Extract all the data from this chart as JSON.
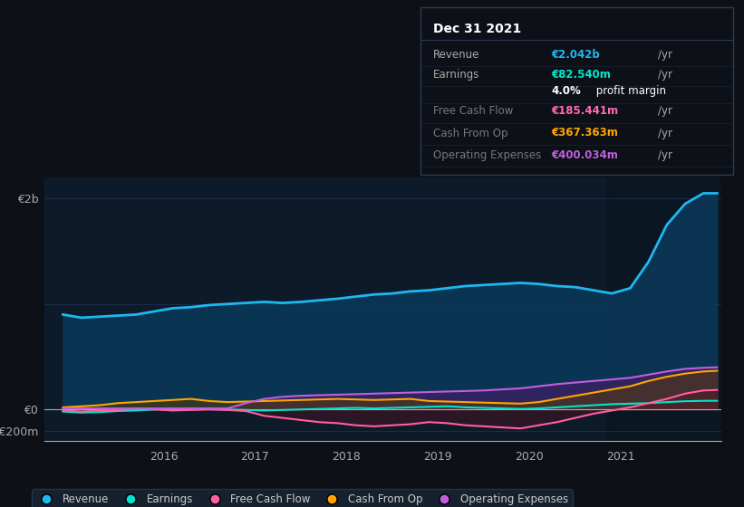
{
  "bg_color": "#0d1117",
  "plot_bg_color": "#0d1a2a",
  "highlight_bg": "#111d2e",
  "grid_color": "#1e3050",
  "zero_line_color": "#aaaaaa",
  "title_box": {
    "date": "Dec 31 2021",
    "rows": [
      {
        "label": "Revenue",
        "value": "€2.042b /yr",
        "value_color": "#00bfff",
        "label_color": "#aaaaaa"
      },
      {
        "label": "Earnings",
        "value": "€82.540m /yr",
        "value_color": "#00e5cc",
        "label_color": "#aaaaaa"
      },
      {
        "label": "",
        "value": "4.0% profit margin",
        "value_color": "#ffffff",
        "label_color": "#aaaaaa"
      },
      {
        "label": "Free Cash Flow",
        "value": "€185.441m /yr",
        "value_color": "#ff69b4",
        "label_color": "#777777"
      },
      {
        "label": "Cash From Op",
        "value": "€367.363m /yr",
        "value_color": "#ffa500",
        "label_color": "#777777"
      },
      {
        "label": "Operating Expenses",
        "value": "€400.034m /yr",
        "value_color": "#bf5fde",
        "label_color": "#777777"
      }
    ]
  },
  "yticks": [
    "€2b",
    "€0",
    "-€200m"
  ],
  "xticks": [
    "2016",
    "2017",
    "2018",
    "2019",
    "2020",
    "2021"
  ],
  "ylim": [
    -300,
    2200
  ],
  "xlim": [
    2014.7,
    2022.1
  ],
  "revenue": [
    [
      2014.9,
      900
    ],
    [
      2015.1,
      870
    ],
    [
      2015.3,
      880
    ],
    [
      2015.5,
      890
    ],
    [
      2015.7,
      900
    ],
    [
      2015.9,
      930
    ],
    [
      2016.1,
      960
    ],
    [
      2016.3,
      970
    ],
    [
      2016.5,
      990
    ],
    [
      2016.7,
      1000
    ],
    [
      2016.9,
      1010
    ],
    [
      2017.1,
      1020
    ],
    [
      2017.3,
      1010
    ],
    [
      2017.5,
      1020
    ],
    [
      2017.7,
      1035
    ],
    [
      2017.9,
      1050
    ],
    [
      2018.1,
      1070
    ],
    [
      2018.3,
      1090
    ],
    [
      2018.5,
      1100
    ],
    [
      2018.7,
      1120
    ],
    [
      2018.9,
      1130
    ],
    [
      2019.1,
      1150
    ],
    [
      2019.3,
      1170
    ],
    [
      2019.5,
      1180
    ],
    [
      2019.7,
      1190
    ],
    [
      2019.9,
      1200
    ],
    [
      2020.1,
      1190
    ],
    [
      2020.3,
      1170
    ],
    [
      2020.5,
      1160
    ],
    [
      2020.7,
      1130
    ],
    [
      2020.9,
      1100
    ],
    [
      2021.1,
      1150
    ],
    [
      2021.3,
      1400
    ],
    [
      2021.5,
      1750
    ],
    [
      2021.7,
      1950
    ],
    [
      2021.9,
      2050
    ],
    [
      2022.05,
      2050
    ]
  ],
  "earnings": [
    [
      2014.9,
      -20
    ],
    [
      2015.1,
      -30
    ],
    [
      2015.3,
      -25
    ],
    [
      2015.5,
      -15
    ],
    [
      2015.7,
      -10
    ],
    [
      2015.9,
      0
    ],
    [
      2016.1,
      5
    ],
    [
      2016.3,
      10
    ],
    [
      2016.5,
      5
    ],
    [
      2016.7,
      0
    ],
    [
      2016.9,
      -5
    ],
    [
      2017.1,
      -10
    ],
    [
      2017.3,
      -5
    ],
    [
      2017.5,
      0
    ],
    [
      2017.7,
      5
    ],
    [
      2017.9,
      10
    ],
    [
      2018.1,
      15
    ],
    [
      2018.3,
      10
    ],
    [
      2018.5,
      15
    ],
    [
      2018.7,
      20
    ],
    [
      2018.9,
      25
    ],
    [
      2019.1,
      30
    ],
    [
      2019.3,
      20
    ],
    [
      2019.5,
      15
    ],
    [
      2019.7,
      10
    ],
    [
      2019.9,
      5
    ],
    [
      2020.1,
      10
    ],
    [
      2020.3,
      20
    ],
    [
      2020.5,
      30
    ],
    [
      2020.7,
      40
    ],
    [
      2020.9,
      50
    ],
    [
      2021.1,
      55
    ],
    [
      2021.3,
      60
    ],
    [
      2021.5,
      70
    ],
    [
      2021.7,
      78
    ],
    [
      2021.9,
      82
    ],
    [
      2022.05,
      82
    ]
  ],
  "free_cash_flow": [
    [
      2014.9,
      -10
    ],
    [
      2015.1,
      -20
    ],
    [
      2015.3,
      -10
    ],
    [
      2015.5,
      -5
    ],
    [
      2015.7,
      5
    ],
    [
      2015.9,
      0
    ],
    [
      2016.1,
      -10
    ],
    [
      2016.3,
      -5
    ],
    [
      2016.5,
      0
    ],
    [
      2016.7,
      -5
    ],
    [
      2016.9,
      -15
    ],
    [
      2017.1,
      -60
    ],
    [
      2017.3,
      -80
    ],
    [
      2017.5,
      -100
    ],
    [
      2017.7,
      -120
    ],
    [
      2017.9,
      -130
    ],
    [
      2018.1,
      -150
    ],
    [
      2018.3,
      -160
    ],
    [
      2018.5,
      -150
    ],
    [
      2018.7,
      -140
    ],
    [
      2018.9,
      -120
    ],
    [
      2019.1,
      -130
    ],
    [
      2019.3,
      -150
    ],
    [
      2019.5,
      -160
    ],
    [
      2019.7,
      -170
    ],
    [
      2019.9,
      -180
    ],
    [
      2020.1,
      -150
    ],
    [
      2020.3,
      -120
    ],
    [
      2020.5,
      -80
    ],
    [
      2020.7,
      -40
    ],
    [
      2020.9,
      -10
    ],
    [
      2021.1,
      20
    ],
    [
      2021.3,
      60
    ],
    [
      2021.5,
      100
    ],
    [
      2021.7,
      150
    ],
    [
      2021.9,
      180
    ],
    [
      2022.05,
      185
    ]
  ],
  "cash_from_op": [
    [
      2014.9,
      20
    ],
    [
      2015.1,
      30
    ],
    [
      2015.3,
      40
    ],
    [
      2015.5,
      60
    ],
    [
      2015.7,
      70
    ],
    [
      2015.9,
      80
    ],
    [
      2016.1,
      90
    ],
    [
      2016.3,
      100
    ],
    [
      2016.5,
      80
    ],
    [
      2016.7,
      70
    ],
    [
      2016.9,
      75
    ],
    [
      2017.1,
      80
    ],
    [
      2017.3,
      85
    ],
    [
      2017.5,
      90
    ],
    [
      2017.7,
      95
    ],
    [
      2017.9,
      100
    ],
    [
      2018.1,
      95
    ],
    [
      2018.3,
      90
    ],
    [
      2018.5,
      95
    ],
    [
      2018.7,
      100
    ],
    [
      2018.9,
      80
    ],
    [
      2019.1,
      75
    ],
    [
      2019.3,
      70
    ],
    [
      2019.5,
      65
    ],
    [
      2019.7,
      60
    ],
    [
      2019.9,
      55
    ],
    [
      2020.1,
      70
    ],
    [
      2020.3,
      100
    ],
    [
      2020.5,
      130
    ],
    [
      2020.7,
      160
    ],
    [
      2020.9,
      190
    ],
    [
      2021.1,
      220
    ],
    [
      2021.3,
      270
    ],
    [
      2021.5,
      310
    ],
    [
      2021.7,
      340
    ],
    [
      2021.9,
      360
    ],
    [
      2022.05,
      367
    ]
  ],
  "op_expenses": [
    [
      2014.9,
      10
    ],
    [
      2015.1,
      10
    ],
    [
      2015.3,
      10
    ],
    [
      2015.5,
      10
    ],
    [
      2015.7,
      10
    ],
    [
      2015.9,
      10
    ],
    [
      2016.1,
      10
    ],
    [
      2016.3,
      10
    ],
    [
      2016.5,
      10
    ],
    [
      2016.7,
      10
    ],
    [
      2016.9,
      60
    ],
    [
      2017.1,
      100
    ],
    [
      2017.3,
      120
    ],
    [
      2017.5,
      130
    ],
    [
      2017.7,
      135
    ],
    [
      2017.9,
      140
    ],
    [
      2018.1,
      145
    ],
    [
      2018.3,
      150
    ],
    [
      2018.5,
      155
    ],
    [
      2018.7,
      160
    ],
    [
      2018.9,
      165
    ],
    [
      2019.1,
      170
    ],
    [
      2019.3,
      175
    ],
    [
      2019.5,
      180
    ],
    [
      2019.7,
      190
    ],
    [
      2019.9,
      200
    ],
    [
      2020.1,
      220
    ],
    [
      2020.3,
      240
    ],
    [
      2020.5,
      255
    ],
    [
      2020.7,
      270
    ],
    [
      2020.9,
      285
    ],
    [
      2021.1,
      300
    ],
    [
      2021.3,
      330
    ],
    [
      2021.5,
      360
    ],
    [
      2021.7,
      385
    ],
    [
      2021.9,
      395
    ],
    [
      2022.05,
      400
    ]
  ],
  "colors": {
    "revenue": "#1eb8f0",
    "earnings": "#00e5cc",
    "free_cash_flow": "#ff5fa0",
    "cash_from_op": "#ffa500",
    "op_expenses": "#bf5fde"
  },
  "legend_items": [
    {
      "label": "Revenue",
      "color": "#1eb8f0"
    },
    {
      "label": "Earnings",
      "color": "#00e5cc"
    },
    {
      "label": "Free Cash Flow",
      "color": "#ff5fa0"
    },
    {
      "label": "Cash From Op",
      "color": "#ffa500"
    },
    {
      "label": "Operating Expenses",
      "color": "#bf5fde"
    }
  ],
  "shaded_x_start": 2020.85
}
